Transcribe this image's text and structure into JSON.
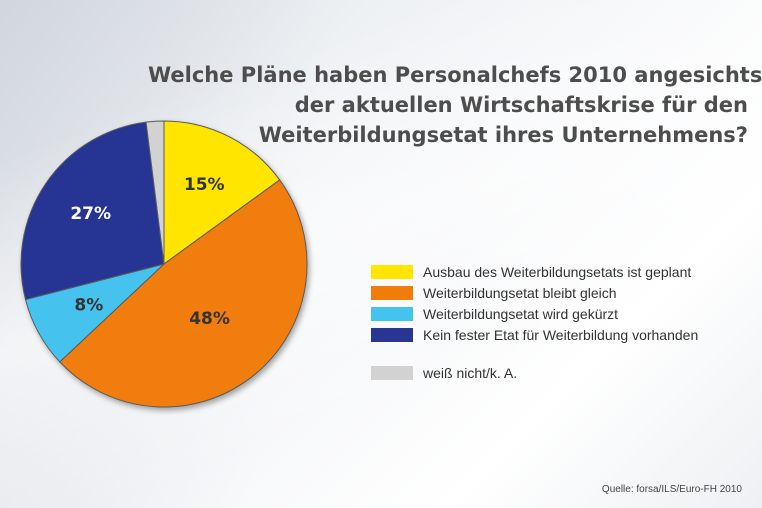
{
  "title_lines": [
    "Welche Pläne haben Personalchefs 2010 angesichts",
    "der aktuellen Wirtschaftskrise für den",
    "Weiterbildungsetat ihres Unternehmens?"
  ],
  "source": "Quelle: forsa/ILS/Euro-FH 2010",
  "chart_data": {
    "type": "pie",
    "title": "Welche Pläne haben Personalchefs 2010 angesichts der aktuellen Wirtschaftskrise für den Weiterbildungsetat ihres Unternehmens?",
    "legend_position": "right",
    "slices": [
      {
        "label": "Ausbau des Weiterbildungsetats ist geplant",
        "value": 15,
        "display": "15%",
        "color": "#ffe500",
        "label_color": "#333333"
      },
      {
        "label": "Weiterbildungsetat bleibt gleich",
        "value": 48,
        "display": "48%",
        "color": "#f07d0a",
        "label_color": "#333333"
      },
      {
        "label": "Weiterbildungsetat wird gekürzt",
        "value": 8,
        "display": "8%",
        "color": "#44c3ee",
        "label_color": "#333333"
      },
      {
        "label": "Kein fester Etat für Weiterbildung vorhanden",
        "value": 27,
        "display": "27%",
        "color": "#283593",
        "label_color": "#ffffff"
      },
      {
        "label": "weiß nicht/k. A.",
        "value": 2,
        "display": "",
        "color": "#d2d2d2",
        "label_color": "#333333"
      }
    ]
  }
}
